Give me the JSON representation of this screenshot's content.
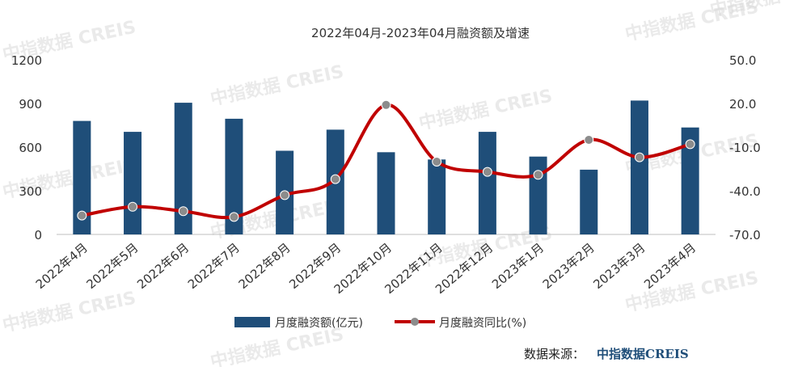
{
  "chart_data": {
    "type": "bar",
    "title": "2022年04月-2023年04月融资额及增速",
    "categories": [
      "2022年4月",
      "2022年5月",
      "2022年6月",
      "2022年7月",
      "2022年8月",
      "2022年9月",
      "2022年10月",
      "2022年11月",
      "2022年12月",
      "2023年1月",
      "2023年2月",
      "2023年3月",
      "2023年4月"
    ],
    "series": [
      {
        "name": "月度融资额(亿元)",
        "type": "bar",
        "axis": "left",
        "color": "#1f4e79",
        "values": [
          780,
          705,
          905,
          795,
          575,
          720,
          565,
          515,
          705,
          535,
          445,
          920,
          735
        ]
      },
      {
        "name": "月度融资同比(%)",
        "type": "line",
        "axis": "right",
        "color": "#c00000",
        "marker_color": "#8c8c8c",
        "values": [
          -57,
          -51,
          -54,
          -58,
          -43,
          -32,
          19,
          -20,
          -27,
          -29,
          -5,
          -17,
          -8
        ]
      }
    ],
    "y_left": {
      "ticks": [
        "0",
        "300",
        "600",
        "900",
        "1200"
      ],
      "ylim": [
        0,
        1200
      ]
    },
    "y_right": {
      "ticks": [
        "-70.0",
        "-40.0",
        "-10.0",
        "20.0",
        "50.0"
      ],
      "ylim": [
        -70,
        50
      ]
    },
    "legend_position": "bottom"
  },
  "source": {
    "label": "数据来源：",
    "brand": "中指数据CREIS"
  },
  "watermark": "中指数据 CREIS"
}
